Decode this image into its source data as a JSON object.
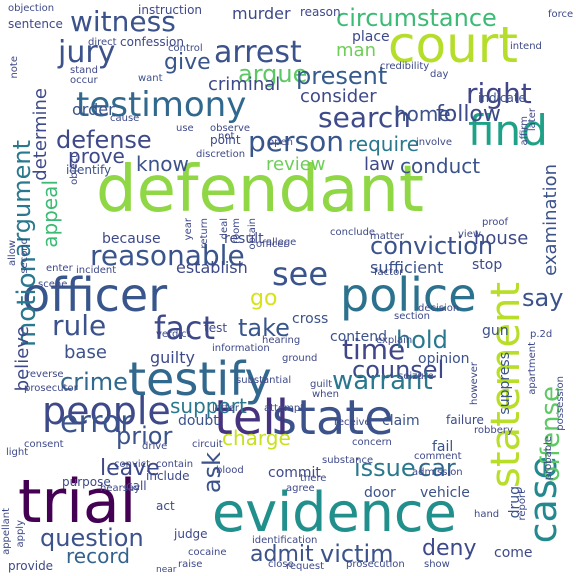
{
  "words": [
    {
      "text": "defendant",
      "color": "#8fd744"
    },
    {
      "text": "court",
      "color": "#b5de2b"
    },
    {
      "text": "evidence",
      "color": "#21908d"
    },
    {
      "text": "trial",
      "color": "#440154"
    },
    {
      "text": "testimony",
      "color": "#31688e"
    },
    {
      "text": "officer",
      "color": "#39568c"
    },
    {
      "text": "police",
      "color": "#2c728e"
    },
    {
      "text": "testify",
      "color": "#31688e"
    },
    {
      "text": "state",
      "color": "#3b528b"
    },
    {
      "text": "people",
      "color": "#3e4989"
    },
    {
      "text": "statement",
      "color": "#b8de29"
    },
    {
      "text": "find",
      "color": "#1fa187"
    },
    {
      "text": "search",
      "color": "#3e4a89"
    },
    {
      "text": "see",
      "color": "#3a548c"
    },
    {
      "text": "case",
      "color": "#23898e"
    },
    {
      "text": "tell",
      "color": "#46337e"
    },
    {
      "text": "witness",
      "color": "#3b528b"
    },
    {
      "text": "arrest",
      "color": "#3b528b"
    },
    {
      "text": "reasonable",
      "color": "#3a548c"
    },
    {
      "text": "fact",
      "color": "#3e4989"
    },
    {
      "text": "circumstance",
      "color": "#3cbb75"
    },
    {
      "text": "jury",
      "color": "#3b528b"
    },
    {
      "text": "argue",
      "color": "#5cc863"
    },
    {
      "text": "person",
      "color": "#39568c"
    },
    {
      "text": "right",
      "color": "#404688"
    },
    {
      "text": "present",
      "color": "#365c8d"
    },
    {
      "text": "argument",
      "color": "#2a788e"
    },
    {
      "text": "defense",
      "color": "#3e4989"
    },
    {
      "text": "conviction",
      "color": "#3b528b"
    },
    {
      "text": "time",
      "color": "#404688"
    },
    {
      "text": "counsel",
      "color": "#3e4989"
    },
    {
      "text": "rule",
      "color": "#3b528b"
    },
    {
      "text": "error",
      "color": "#3a548c"
    },
    {
      "text": "crime",
      "color": "#31688e"
    },
    {
      "text": "warrant",
      "color": "#2a788e"
    },
    {
      "text": "motion",
      "color": "#2a788e"
    },
    {
      "text": "offense",
      "color": "#5ec962"
    },
    {
      "text": "question",
      "color": "#3b528b"
    },
    {
      "text": "victim",
      "color": "#3b528b"
    },
    {
      "text": "issue",
      "color": "#2a788e"
    },
    {
      "text": "car",
      "color": "#31688e"
    },
    {
      "text": "prior",
      "color": "#3b528b"
    },
    {
      "text": "hold",
      "color": "#2a788e"
    },
    {
      "text": "take",
      "color": "#39568c"
    },
    {
      "text": "give",
      "color": "#39568c"
    },
    {
      "text": "record",
      "color": "#33638d"
    },
    {
      "text": "admit",
      "color": "#3b528b"
    },
    {
      "text": "deny",
      "color": "#3e4989"
    },
    {
      "text": "charge",
      "color": "#c8e020"
    },
    {
      "text": "ask",
      "color": "#3b528b"
    },
    {
      "text": "go",
      "color": "#d8e219"
    },
    {
      "text": "say",
      "color": "#3b528b"
    },
    {
      "text": "leave",
      "color": "#3e4989"
    },
    {
      "text": "appeal",
      "color": "#3cbb75"
    },
    {
      "text": "support",
      "color": "#2a788e"
    },
    {
      "text": "follow",
      "color": "#3e4989"
    },
    {
      "text": "home",
      "color": "#3b528b"
    },
    {
      "text": "know",
      "color": "#3b528b"
    },
    {
      "text": "prove",
      "color": "#3e4989"
    },
    {
      "text": "review",
      "color": "#6ece58"
    },
    {
      "text": "require",
      "color": "#2a788e"
    },
    {
      "text": "conduct",
      "color": "#3b528b"
    },
    {
      "text": "consider",
      "color": "#3e4989"
    },
    {
      "text": "criminal",
      "color": "#3e4989"
    },
    {
      "text": "man",
      "color": "#6ece58"
    },
    {
      "text": "murder",
      "color": "#3e4989"
    },
    {
      "text": "determine",
      "color": "#3e4989"
    },
    {
      "text": "examination",
      "color": "#3b528b"
    },
    {
      "text": "house",
      "color": "#3e4989"
    },
    {
      "text": "sufficient",
      "color": "#3b528b"
    },
    {
      "text": "establish",
      "color": "#3e4989"
    },
    {
      "text": "believe",
      "color": "#3e4989"
    },
    {
      "text": "base",
      "color": "#3b528b"
    },
    {
      "text": "guilty",
      "color": "#3e4989"
    },
    {
      "text": "order",
      "color": "#3b528b"
    },
    {
      "text": "law",
      "color": "#3e4989"
    },
    {
      "text": "because",
      "color": "#3e4989"
    },
    {
      "text": "result",
      "color": "#3e4989"
    },
    {
      "text": "contend",
      "color": "#3b528b"
    },
    {
      "text": "cross",
      "color": "#3b528b"
    },
    {
      "text": "opinion",
      "color": "#3b528b"
    },
    {
      "text": "suppress",
      "color": "#3b528b"
    },
    {
      "text": "doubt",
      "color": "#3b528b"
    },
    {
      "text": "commit",
      "color": "#3e4989"
    },
    {
      "text": "door",
      "color": "#3b528b"
    },
    {
      "text": "vehicle",
      "color": "#3b528b"
    },
    {
      "text": "claim",
      "color": "#3b528b"
    },
    {
      "text": "fail",
      "color": "#3b528b"
    },
    {
      "text": "drug",
      "color": "#3b528b"
    },
    {
      "text": "come",
      "color": "#3e4989"
    },
    {
      "text": "gun",
      "color": "#3b528b"
    },
    {
      "text": "stop",
      "color": "#3e4989"
    },
    {
      "text": "place",
      "color": "#3e4989"
    },
    {
      "text": "sentence",
      "color": "#3e4989"
    },
    {
      "text": "instruction",
      "color": "#3e4989"
    },
    {
      "text": "reason",
      "color": "#3e4989"
    },
    {
      "text": "confession",
      "color": "#3e4989"
    },
    {
      "text": "direct",
      "color": "#3e4989"
    },
    {
      "text": "indicate",
      "color": "#3b528b"
    },
    {
      "text": "day",
      "color": "#3e4989"
    },
    {
      "text": "want",
      "color": "#3b528b"
    },
    {
      "text": "point",
      "color": "#3e4989"
    },
    {
      "text": "identify",
      "color": "#3b528b"
    },
    {
      "text": "note",
      "color": "#3e4989"
    },
    {
      "text": "allow",
      "color": "#3e4989"
    },
    {
      "text": "second",
      "color": "#3e4989"
    },
    {
      "text": "enter",
      "color": "#3e4989"
    },
    {
      "text": "incident",
      "color": "#3e4989"
    },
    {
      "text": "scene",
      "color": "#3e4989"
    },
    {
      "text": "verdict",
      "color": "#3e4989"
    },
    {
      "text": "reverse",
      "color": "#3e4989"
    },
    {
      "text": "prosecutor",
      "color": "#3e4989"
    },
    {
      "text": "purpose",
      "color": "#3e4989"
    },
    {
      "text": "call",
      "color": "#3e4989"
    },
    {
      "text": "include",
      "color": "#3e4989"
    },
    {
      "text": "act",
      "color": "#3e4989"
    },
    {
      "text": "judge",
      "color": "#3e4989"
    },
    {
      "text": "provide",
      "color": "#3e4989"
    },
    {
      "text": "appellant",
      "color": "#3e4989"
    },
    {
      "text": "apply",
      "color": "#3e4989"
    },
    {
      "text": "light",
      "color": "#3e4989"
    },
    {
      "text": "hearsay",
      "color": "#3e4989"
    },
    {
      "text": "convict",
      "color": "#3e4989"
    },
    {
      "text": "drive",
      "color": "#3e4989"
    },
    {
      "text": "circuit",
      "color": "#3e4989"
    },
    {
      "text": "blood",
      "color": "#3e4989"
    },
    {
      "text": "agree",
      "color": "#3e4989"
    },
    {
      "text": "comment",
      "color": "#3e4989"
    },
    {
      "text": "substance",
      "color": "#3e4989"
    },
    {
      "text": "admission",
      "color": "#3e4989"
    },
    {
      "text": "concern",
      "color": "#3e4989"
    },
    {
      "text": "prosecution",
      "color": "#3e4989"
    },
    {
      "text": "request",
      "color": "#3e4989"
    },
    {
      "text": "show",
      "color": "#3e4989"
    },
    {
      "text": "hand",
      "color": "#3e4989"
    },
    {
      "text": "when",
      "color": "#3e4989"
    },
    {
      "text": "attempt",
      "color": "#3e4989"
    },
    {
      "text": "guilt",
      "color": "#3e4989"
    },
    {
      "text": "explain",
      "color": "#3e4989"
    },
    {
      "text": "information",
      "color": "#3e4989"
    },
    {
      "text": "hearing",
      "color": "#3e4989"
    },
    {
      "text": "ground",
      "color": "#3e4989"
    },
    {
      "text": "section",
      "color": "#3e4989"
    },
    {
      "text": "seizure",
      "color": "#3e4989"
    },
    {
      "text": "however",
      "color": "#3e4989"
    },
    {
      "text": "report",
      "color": "#3e4989"
    },
    {
      "text": "probable",
      "color": "#3e4989"
    },
    {
      "text": "possession",
      "color": "#3e4989"
    },
    {
      "text": "apartment",
      "color": "#3e4989"
    },
    {
      "text": "robbery",
      "color": "#3e4989"
    },
    {
      "text": "decision",
      "color": "#3e4989"
    },
    {
      "text": "view",
      "color": "#3e4989"
    },
    {
      "text": "proof",
      "color": "#3e4989"
    },
    {
      "text": "matter",
      "color": "#3e4989"
    },
    {
      "text": "conclude",
      "color": "#3e4989"
    },
    {
      "text": "allege",
      "color": "#3e4989"
    },
    {
      "text": "year",
      "color": "#3e4989"
    },
    {
      "text": "return",
      "color": "#3e4989"
    },
    {
      "text": "room",
      "color": "#3e4989"
    },
    {
      "text": "deal",
      "color": "#3e4989"
    },
    {
      "text": "obtain",
      "color": "#3e4989"
    },
    {
      "text": "use",
      "color": "#3e4989"
    },
    {
      "text": "discretion",
      "color": "#3e4989"
    },
    {
      "text": "observe",
      "color": "#3e4989"
    },
    {
      "text": "involve",
      "color": "#3e4989"
    },
    {
      "text": "affirm",
      "color": "#3e4989"
    },
    {
      "text": "later",
      "color": "#3e4989"
    },
    {
      "text": "credibility",
      "color": "#3e4989"
    },
    {
      "text": "force",
      "color": "#3e4989"
    },
    {
      "text": "stand",
      "color": "#3e4989"
    },
    {
      "text": "occur",
      "color": "#3e4989"
    },
    {
      "text": "control",
      "color": "#3e4989"
    },
    {
      "text": "intend",
      "color": "#3e4989"
    },
    {
      "text": "contain",
      "color": "#3e4989"
    },
    {
      "text": "object",
      "color": "#3e4989"
    },
    {
      "text": "objection",
      "color": "#3e4989"
    },
    {
      "text": "open",
      "color": "#3e4989"
    },
    {
      "text": "substantial",
      "color": "#3e4989"
    },
    {
      "text": "cocaine",
      "color": "#3e4989"
    },
    {
      "text": "raise",
      "color": "#3e4989"
    },
    {
      "text": "close",
      "color": "#3e4989"
    },
    {
      "text": "near",
      "color": "#3e4989"
    },
    {
      "text": "identification",
      "color": "#3e4989"
    },
    {
      "text": "there",
      "color": "#3e4989"
    },
    {
      "text": "receive",
      "color": "#3e4989"
    },
    {
      "text": "failure",
      "color": "#3e4989"
    },
    {
      "text": "test",
      "color": "#3e4989"
    },
    {
      "text": "p.2d",
      "color": "#3e4989"
    },
    {
      "text": "letter",
      "color": "#3e4989"
    },
    {
      "text": "cause",
      "color": "#3e4989"
    },
    {
      "text": "not",
      "color": "#3e4989"
    },
    {
      "text": "consent",
      "color": "#3e4989"
    },
    {
      "text": "officer",
      "color": "#3e4989"
    },
    {
      "text": "factor",
      "color": "#3e4989"
    },
    {
      "text": "presence",
      "color": "#3e4989"
    }
  ]
}
